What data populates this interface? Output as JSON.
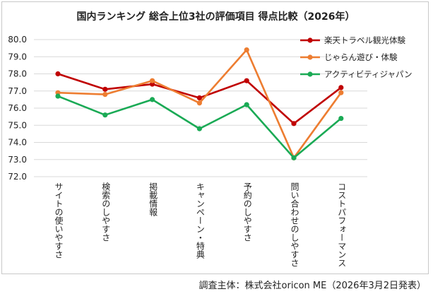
{
  "chart_data": {
    "type": "line",
    "title": "国内ランキング 総合上位3社の評価項目 得点比較（2026年）",
    "categories": [
      "サイトの使いやすさ",
      "検索のしやすさ",
      "掲載情報",
      "キャンペーン・特典",
      "予約のしやすさ",
      "問い合わせのしやすさ",
      "コストパフォーマンス"
    ],
    "series": [
      {
        "name": "楽天トラベル観光体験",
        "color": "#c00000",
        "values": [
          78.0,
          77.1,
          77.4,
          76.6,
          77.6,
          75.1,
          77.2
        ]
      },
      {
        "name": "じゃらん遊び・体験",
        "color": "#ed7d31",
        "values": [
          76.9,
          76.8,
          77.6,
          76.3,
          79.4,
          73.1,
          76.9
        ]
      },
      {
        "name": "アクティビティジャパン",
        "color": "#1aaa55",
        "values": [
          76.7,
          75.6,
          76.5,
          74.8,
          76.2,
          73.1,
          75.4
        ]
      }
    ],
    "yticks": [
      "72.0",
      "73.0",
      "74.0",
      "75.0",
      "76.0",
      "77.0",
      "78.0",
      "79.0",
      "80.0"
    ],
    "ylim": [
      72,
      80
    ],
    "legend_position": "top-right",
    "grid": true
  },
  "footer": "調査主体：株式会社oricon ME（2026年3月2日発表）"
}
